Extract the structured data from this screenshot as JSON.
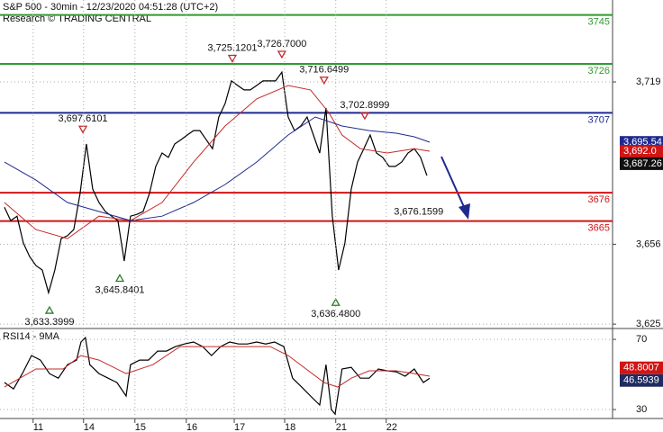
{
  "chart_data": [
    {
      "type": "line",
      "title": "S&P 500 - 30min - 12/23/2020 04:51:28 (UTC+2)",
      "subtitle": "Research © TRADING CENTRAL",
      "xlim": [
        -1.4,
        192.9
      ],
      "ylim": [
        3623.3,
        3750.8
      ],
      "yticks": [
        {
          "value": 3625,
          "label": "3,625"
        },
        {
          "value": 3656,
          "label": "3,656"
        },
        {
          "value": 3719,
          "label": "3,719"
        }
      ],
      "grid": true,
      "series": [
        {
          "color": "#000000",
          "x": [
            0,
            2,
            4,
            6,
            8,
            10,
            12,
            14,
            16,
            18,
            20,
            22,
            24,
            26,
            28,
            30,
            32,
            34,
            36,
            38,
            40,
            42,
            44,
            46,
            48,
            50,
            52,
            54,
            56,
            58,
            60,
            62,
            64,
            66,
            68,
            70,
            72,
            74,
            76,
            78,
            80,
            82,
            84,
            86,
            88,
            90,
            92,
            94,
            96,
            98,
            100,
            102,
            104,
            106,
            108,
            110,
            112,
            114,
            116,
            118,
            120,
            122,
            124,
            126,
            128,
            130,
            132,
            134
          ],
          "values": [
            3670.4,
            3665.2,
            3666.9,
            3656.5,
            3651.2,
            3647.7,
            3646.0,
            3637.2,
            3646.0,
            3658.2,
            3659.3,
            3661.7,
            3675.7,
            3694.9,
            3677.4,
            3672.2,
            3668.7,
            3666.9,
            3665.2,
            3649.5,
            3666.9,
            3667.6,
            3668.7,
            3675.7,
            3686.2,
            3691.4,
            3689.7,
            3694.9,
            3696.6,
            3698.4,
            3700.1,
            3700.1,
            3696.6,
            3693.1,
            3705.4,
            3710.6,
            3719.4,
            3717.6,
            3715.9,
            3715.9,
            3717.6,
            3719.4,
            3719.4,
            3719.4,
            3722.8,
            3705.4,
            3700.1,
            3701.9,
            3705.4,
            3698.4,
            3691.4,
            3708.9,
            3666.9,
            3646.0,
            3656.5,
            3677.4,
            3687.9,
            3693.1,
            3698.4,
            3691.4,
            3689.7,
            3686.2,
            3686.2,
            3687.9,
            3691.4,
            3693.1,
            3689.7,
            3682.7
          ]
        },
        {
          "color": "#c62828",
          "x": [
            0,
            10,
            20,
            30,
            40,
            50,
            60,
            70,
            80,
            90,
            97.1,
            102.9,
            107.1,
            112.9,
            121.4,
            130,
            134.9
          ],
          "values": [
            3672.2,
            3661.7,
            3658.2,
            3666.9,
            3665.2,
            3672.2,
            3687.9,
            3701.9,
            3712.4,
            3717.6,
            3715.9,
            3707.1,
            3698.4,
            3693.1,
            3691.4,
            3693.1,
            3692.1
          ]
        },
        {
          "color": "#1f2a8f",
          "x": [
            0,
            10,
            20,
            30,
            40,
            50,
            60,
            70,
            80,
            90,
            98.6,
            107.1,
            115.7,
            124.3,
            130,
            134.9
          ],
          "values": [
            3687.9,
            3680.9,
            3672.2,
            3668.7,
            3665.2,
            3666.9,
            3672.2,
            3679.2,
            3687.9,
            3698.4,
            3705.4,
            3701.9,
            3700.1,
            3699.1,
            3697.7,
            3695.6
          ]
        }
      ],
      "levels": [
        {
          "value": 3745,
          "color": "#2e9a2e"
        },
        {
          "value": 3726,
          "color": "#2e9a2e"
        },
        {
          "value": 3707,
          "color": "#1f2a8f"
        },
        {
          "value": 3676,
          "color": "#d01515"
        },
        {
          "value": 3665,
          "color": "#d01515"
        }
      ],
      "annotations": [
        {
          "x": 72.3,
          "value": 3725.1201,
          "label": "3,725.1201",
          "marker": "high"
        },
        {
          "x": 88,
          "value": 3726.7,
          "label": "3,726.7000",
          "marker": "high"
        },
        {
          "x": 101.4,
          "value": 3716.6499,
          "label": "3,716.6499",
          "marker": "high"
        },
        {
          "x": 114.3,
          "value": 3702.8999,
          "label": "3,702.8999",
          "marker": "high"
        },
        {
          "x": 24.9,
          "value": 3697.6101,
          "label": "3,697.6101",
          "marker": "high"
        },
        {
          "x": 131.4,
          "value": 3676.1599,
          "label": "3,676.1599"
        },
        {
          "x": 36.6,
          "value": 3645.8401,
          "label": "3,645.8401",
          "marker": "low"
        },
        {
          "x": 14.3,
          "value": 3633.3999,
          "label": "3,633.3999",
          "marker": "low"
        },
        {
          "x": 105.1,
          "value": 3636.48,
          "label": "3,636.4800",
          "marker": "low"
        }
      ],
      "price_tags": [
        {
          "value": 3695.54,
          "label": "3,695.54",
          "color": "#1f2a8f"
        },
        {
          "value": 3692.0,
          "label": "3,692.0",
          "color": "#d01515"
        },
        {
          "value": 3687.26,
          "label": "3,687.26",
          "color": "#111111"
        }
      ]
    },
    {
      "type": "line",
      "title": "RSI14 - 9MA",
      "xlim": [
        -1.4,
        192.9
      ],
      "ylim": [
        24.9,
        76.2
      ],
      "yticks": [
        30,
        70
      ],
      "grid": true,
      "xticks": [
        {
          "value": 9.1,
          "label": "11"
        },
        {
          "value": 25.1,
          "label": "14"
        },
        {
          "value": 41.4,
          "label": "15"
        },
        {
          "value": 57.7,
          "label": "16"
        },
        {
          "value": 72.9,
          "label": "17"
        },
        {
          "value": 88.9,
          "label": "18"
        },
        {
          "value": 105.1,
          "label": "21"
        },
        {
          "value": 121.1,
          "label": "22"
        }
      ],
      "series": [
        {
          "color": "#000000",
          "x": [
            0,
            2.9,
            5.7,
            8.6,
            11.4,
            14.3,
            17.1,
            20,
            22.9,
            24.3,
            25.7,
            27.1,
            30,
            32.9,
            35.7,
            38.6,
            40,
            42.9,
            45.7,
            48.6,
            51.4,
            54.3,
            57.1,
            60,
            62.9,
            65.7,
            68.6,
            71.4,
            74.3,
            77.1,
            80,
            82.9,
            85.7,
            88.6,
            91.4,
            94.3,
            97.1,
            100,
            102,
            103.7,
            104.9,
            107.1,
            110,
            112.9,
            115.7,
            118.6,
            121.4,
            124.3,
            127.1,
            130,
            132.9,
            134.9
          ],
          "values": [
            45.4,
            41.8,
            50.5,
            60.8,
            58.2,
            50.5,
            47.9,
            55.6,
            58.2,
            68.5,
            71.0,
            55.6,
            50.5,
            47.9,
            45.4,
            37.7,
            55.6,
            58.2,
            58.2,
            63.3,
            63.3,
            65.9,
            67.4,
            68.5,
            65.9,
            60.8,
            65.9,
            68.5,
            67.4,
            67.4,
            68.5,
            67.4,
            68.5,
            65.9,
            47.9,
            42.8,
            37.7,
            32.6,
            55.6,
            30.0,
            27.4,
            53.1,
            54.1,
            47.9,
            47.9,
            53.1,
            52.1,
            51.5,
            49.0,
            53.1,
            45.4,
            47.9
          ]
        },
        {
          "color": "#c62828",
          "x": [
            0,
            10,
            18.6,
            24.3,
            30,
            38.6,
            47.1,
            55.7,
            64.3,
            72.9,
            84.3,
            90,
            95.7,
            101.4,
            105.7,
            110,
            115.7,
            124.3,
            130,
            134.9
          ],
          "values": [
            42.8,
            53.1,
            53.1,
            60.8,
            58.2,
            50.5,
            55.6,
            65.9,
            65.9,
            65.9,
            65.9,
            60.8,
            53.1,
            45.4,
            42.8,
            47.9,
            52.1,
            52.1,
            50.5,
            49.0
          ]
        }
      ],
      "price_tags": [
        {
          "value": 46.5939,
          "label": "46.5939",
          "color": "#1f2a5f"
        },
        {
          "value": 48.8007,
          "label": "48.8007",
          "color": "#d01515"
        }
      ]
    }
  ]
}
